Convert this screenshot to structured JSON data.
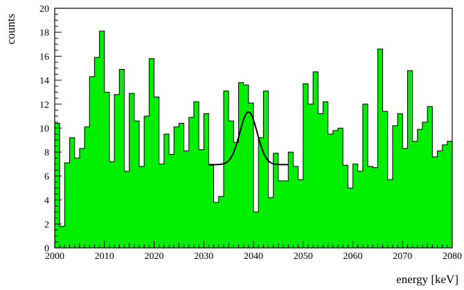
{
  "chart_data": {
    "type": "histogram",
    "title": "",
    "xlabel": "energy [keV]",
    "ylabel": "counts",
    "xlim": [
      2000,
      2080
    ],
    "ylim": [
      0,
      20
    ],
    "bin_width": 1,
    "x_ticks": [
      2000,
      2010,
      2020,
      2030,
      2040,
      2050,
      2060,
      2070,
      2080
    ],
    "y_ticks": [
      0,
      2,
      4,
      6,
      8,
      10,
      12,
      14,
      16,
      18,
      20
    ],
    "grid": false,
    "colors": {
      "fill": "#00ee00",
      "outline": "#000000",
      "fit": "#000000"
    },
    "series": [
      {
        "bin_start": 2000,
        "values": [
          10.4,
          1.8,
          7.1,
          9.2,
          7.5,
          8.3,
          10.1,
          14.3,
          15.9,
          18.1,
          13.0,
          7.2,
          12.8,
          14.9,
          6.4,
          12.9,
          10.6,
          6.8,
          11.0,
          15.8,
          12.6,
          7.0,
          9.5,
          7.8,
          10.1,
          10.4,
          8.1,
          10.9,
          12.2,
          8.2,
          11.2,
          6.9,
          3.8,
          4.3,
          13.1,
          10.6,
          8.8,
          13.8,
          13.6,
          12.1,
          3.0,
          9.2,
          13.1,
          4.2,
          7.9,
          5.6,
          5.6,
          8.0,
          6.8,
          5.7,
          13.7,
          12.0,
          14.7,
          11.2,
          12.2,
          9.5,
          9.8,
          10.0,
          6.9,
          5.0,
          7.0,
          6.4,
          12.0,
          6.8,
          6.7,
          16.6,
          11.4,
          5.7,
          10.2,
          11.2,
          8.3,
          14.8,
          8.9,
          9.9,
          10.5,
          11.8,
          7.6,
          8.1,
          8.6,
          8.9
        ]
      },
      {
        "name": "",
        "type": "line",
        "function": "gaussian",
        "range": [
          2031,
          2047
        ],
        "baseline": 6.95,
        "amplitude": 4.4,
        "mean": 2039,
        "sigma": 1.75
      }
    ]
  }
}
